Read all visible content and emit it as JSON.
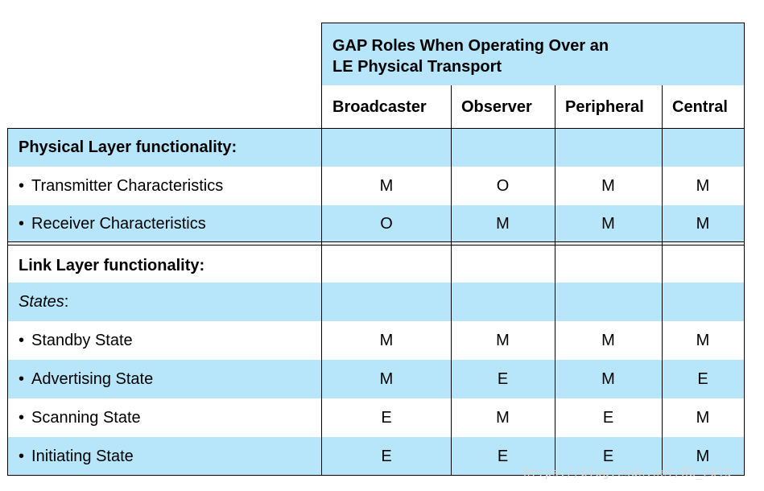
{
  "header": {
    "title_line1": "GAP Roles When Operating Over an",
    "title_line2": "LE Physical Transport",
    "columns": [
      "Broadcaster",
      "Observer",
      "Peripheral",
      "Central"
    ]
  },
  "rows": [
    {
      "label": "Physical Layer functionality:",
      "style": "section",
      "bg": "blue",
      "values": [
        "",
        "",
        "",
        ""
      ]
    },
    {
      "label": "Transmitter Characteristics",
      "style": "bullet",
      "bg": "white",
      "values": [
        "M",
        "O",
        "M",
        "M"
      ]
    },
    {
      "label": "Receiver Characteristics",
      "style": "bullet",
      "bg": "blue",
      "values": [
        "O",
        "M",
        "M",
        "M"
      ]
    },
    {
      "label": "Link Layer functionality:",
      "style": "section",
      "bg": "white",
      "values": [
        "",
        "",
        "",
        ""
      ]
    },
    {
      "label": "States",
      "suffix": ":",
      "style": "italic",
      "bg": "blue",
      "values": [
        "",
        "",
        "",
        ""
      ]
    },
    {
      "label": "Standby State",
      "style": "bullet",
      "bg": "white",
      "values": [
        "M",
        "M",
        "M",
        "M"
      ]
    },
    {
      "label": "Advertising State",
      "style": "bullet",
      "bg": "blue",
      "values": [
        "M",
        "E",
        "M",
        "E"
      ]
    },
    {
      "label": "Scanning State",
      "style": "bullet",
      "bg": "white",
      "values": [
        "E",
        "M",
        "E",
        "M"
      ]
    },
    {
      "label": "Initiating State",
      "style": "bullet",
      "bg": "blue",
      "values": [
        "E",
        "E",
        "E",
        "M"
      ]
    }
  ],
  "bullet_char": "•",
  "watermark": "https://blog.csdn.net/XG_2013",
  "colors": {
    "row_blue": "#b7e6fb",
    "row_white": "#ffffff",
    "grid": "#000000"
  }
}
